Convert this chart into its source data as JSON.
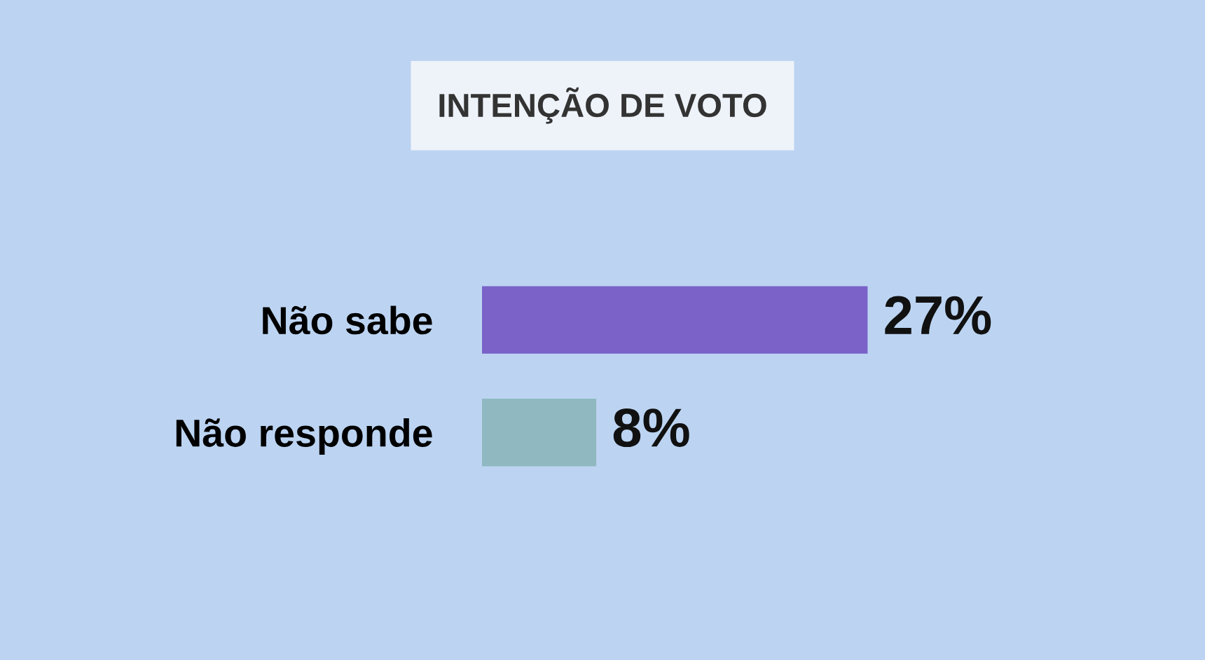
{
  "chart_data": {
    "type": "bar",
    "orientation": "horizontal",
    "title": "INTENÇÃO DE VOTO",
    "categories": [
      "Não sabe",
      "Não responde"
    ],
    "values": [
      27,
      8
    ],
    "colors": [
      "#7a62c8",
      "#8fb8c0"
    ],
    "value_labels": [
      "27%",
      "8%"
    ]
  }
}
